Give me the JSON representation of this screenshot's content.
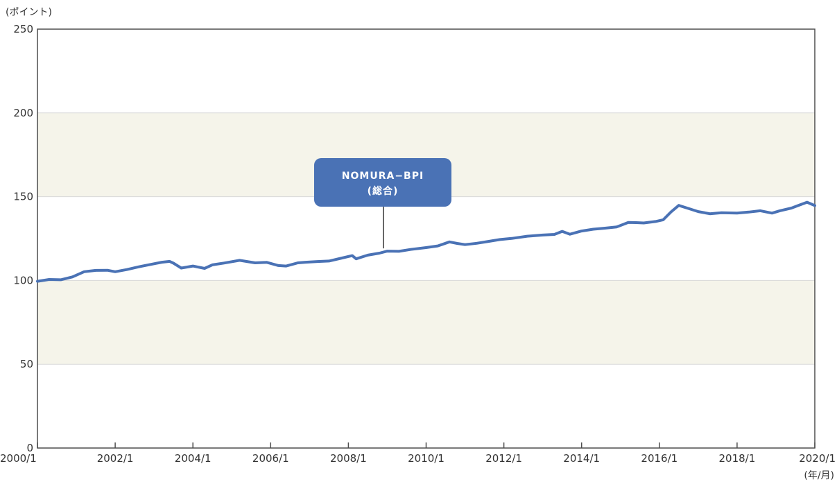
{
  "colors": {
    "line": "#4a72b5",
    "band": "#f5f4ea",
    "grid": "#d9d9d9",
    "axis": "#4d4d4d",
    "callout_fill": "#4a72b5",
    "callout_text": "#ffffff"
  },
  "chart_data": {
    "type": "line",
    "title": "",
    "ylabel": "(ポイント)",
    "xlabel": "(年/月)",
    "ylim": [
      0,
      250
    ],
    "y_ticks": [
      0,
      50,
      100,
      150,
      200,
      250
    ],
    "xlim": [
      2000.0,
      2020.0
    ],
    "x_ticks": [
      {
        "value": 2000,
        "label": "2000/1"
      },
      {
        "value": 2002,
        "label": "2002/1"
      },
      {
        "value": 2004,
        "label": "2004/1"
      },
      {
        "value": 2006,
        "label": "2006/1"
      },
      {
        "value": 2008,
        "label": "2008/1"
      },
      {
        "value": 2010,
        "label": "2010/1"
      },
      {
        "value": 2012,
        "label": "2012/1"
      },
      {
        "value": 2014,
        "label": "2014/1"
      },
      {
        "value": 2016,
        "label": "2016/1"
      },
      {
        "value": 2018,
        "label": "2018/1"
      },
      {
        "value": 2020,
        "label": "2020/1"
      }
    ],
    "shaded_bands": [
      [
        50,
        100
      ],
      [
        150,
        200
      ]
    ],
    "grid": "horizontal",
    "series": [
      {
        "name": "NOMURA−BPI (総合)",
        "x": [
          2000.0,
          2000.3,
          2000.6,
          2000.9,
          2001.2,
          2001.5,
          2001.8,
          2002.0,
          2002.3,
          2002.6,
          2002.9,
          2003.2,
          2003.4,
          2003.5,
          2003.7,
          2004.0,
          2004.3,
          2004.5,
          2004.8,
          2005.2,
          2005.6,
          2005.9,
          2006.2,
          2006.4,
          2006.7,
          2006.9,
          2007.2,
          2007.5,
          2007.8,
          2008.1,
          2008.2,
          2008.5,
          2008.8,
          2009.0,
          2009.3,
          2009.6,
          2010.0,
          2010.3,
          2010.6,
          2010.8,
          2011.0,
          2011.3,
          2011.6,
          2011.9,
          2012.2,
          2012.6,
          2013.0,
          2013.3,
          2013.5,
          2013.7,
          2014.0,
          2014.3,
          2014.6,
          2014.9,
          2015.2,
          2015.4,
          2015.6,
          2015.9,
          2016.1,
          2016.3,
          2016.5,
          2016.8,
          2017.0,
          2017.3,
          2017.6,
          2018.0,
          2018.3,
          2018.6,
          2018.9,
          2019.1,
          2019.4,
          2019.6,
          2019.8,
          2020.0
        ],
        "y": [
          99.5,
          100.6,
          100.4,
          102.1,
          105.2,
          106.0,
          106.1,
          105.2,
          106.5,
          108.1,
          109.5,
          110.9,
          111.4,
          110.3,
          107.4,
          108.6,
          107.2,
          109.3,
          110.4,
          112.0,
          110.5,
          110.8,
          108.9,
          108.6,
          110.5,
          110.9,
          111.3,
          111.6,
          113.2,
          114.8,
          112.9,
          115.1,
          116.3,
          117.5,
          117.4,
          118.5,
          119.6,
          120.6,
          123.0,
          122.1,
          121.4,
          122.2,
          123.3,
          124.4,
          125.1,
          126.4,
          127.1,
          127.5,
          129.3,
          127.6,
          129.5,
          130.6,
          131.2,
          131.9,
          134.6,
          134.5,
          134.3,
          135.2,
          136.2,
          140.9,
          144.8,
          142.6,
          141.1,
          139.8,
          140.4,
          140.2,
          140.8,
          141.6,
          140.2,
          141.6,
          143.2,
          145.0,
          146.7,
          144.7
        ]
      }
    ],
    "annotation": {
      "line1": "NOMURA−BPI",
      "line2": "(総合)",
      "points_to_x": 2008.9,
      "points_to_y": 117.5
    }
  }
}
